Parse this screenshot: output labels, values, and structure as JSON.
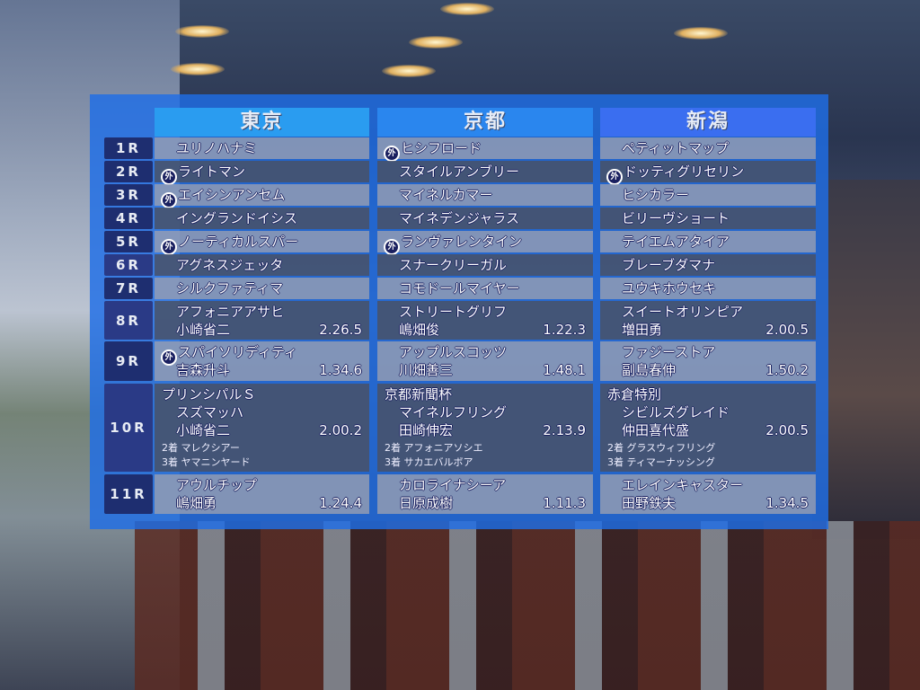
{
  "venues": [
    "東京",
    "京都",
    "新潟"
  ],
  "mark_icon": "circled-gai-foreign-horse-icon",
  "mark_glyph": "外",
  "races": [
    {
      "label": "1R",
      "cells": [
        {
          "mark": false,
          "horse": "ユリノハナミ"
        },
        {
          "mark": true,
          "horse": "ヒシフロード"
        },
        {
          "mark": false,
          "horse": "ペティットマップ"
        }
      ]
    },
    {
      "label": "2R",
      "cells": [
        {
          "mark": true,
          "horse": "ライトマン"
        },
        {
          "mark": false,
          "horse": "スタイルアンブリー"
        },
        {
          "mark": true,
          "horse": "ドッティグリセリン"
        }
      ]
    },
    {
      "label": "3R",
      "cells": [
        {
          "mark": true,
          "horse": "エイシンアンセム"
        },
        {
          "mark": false,
          "horse": "マイネルカマー"
        },
        {
          "mark": false,
          "horse": "ヒシカラー"
        }
      ]
    },
    {
      "label": "4R",
      "cells": [
        {
          "mark": false,
          "horse": "イングランドイシス"
        },
        {
          "mark": false,
          "horse": "マイネデンジャラス"
        },
        {
          "mark": false,
          "horse": "ビリーヴショート"
        }
      ]
    },
    {
      "label": "5R",
      "cells": [
        {
          "mark": true,
          "horse": "ノーティカルスパー"
        },
        {
          "mark": true,
          "horse": "ランヴァレンタイン"
        },
        {
          "mark": false,
          "horse": "テイエムアタイア"
        }
      ]
    },
    {
      "label": "6R",
      "cells": [
        {
          "mark": false,
          "horse": "アグネスジェッタ"
        },
        {
          "mark": false,
          "horse": "スナークリーガル"
        },
        {
          "mark": false,
          "horse": "ブレーブダマナ"
        }
      ]
    },
    {
      "label": "7R",
      "cells": [
        {
          "mark": false,
          "horse": "シルクファティマ"
        },
        {
          "mark": false,
          "horse": "コモドールマイヤー"
        },
        {
          "mark": false,
          "horse": "ユウキホウセキ"
        }
      ]
    },
    {
      "label": "8R",
      "cells": [
        {
          "mark": false,
          "horse": "アフォニアアサヒ",
          "jockey": "小崎省二",
          "time": "2.26.5"
        },
        {
          "mark": false,
          "horse": "ストリートグリフ",
          "jockey": "嶋畑俊",
          "time": "1.22.3"
        },
        {
          "mark": false,
          "horse": "スイートオリンピア",
          "jockey": "増田勇",
          "time": "2.00.5"
        }
      ]
    },
    {
      "label": "9R",
      "cells": [
        {
          "mark": true,
          "horse": "スパイソリディティ",
          "jockey": "吉森升斗",
          "time": "1.34.6"
        },
        {
          "mark": false,
          "horse": "アップルスコッツ",
          "jockey": "川畑善三",
          "time": "1.48.1"
        },
        {
          "mark": false,
          "horse": "ファジーストア",
          "jockey": "副島春伸",
          "time": "1.50.2"
        }
      ]
    },
    {
      "label": "10R",
      "cells": [
        {
          "mark": false,
          "race_name": "プリンシパルＳ",
          "horse": "スズマッハ",
          "jockey": "小崎省二",
          "time": "2.00.2",
          "second": "2着 マレクシアー",
          "third": "3着 ヤマニンヤード"
        },
        {
          "mark": false,
          "race_name": "京都新聞杯",
          "horse": "マイネルフリング",
          "jockey": "田崎伸宏",
          "time": "2.13.9",
          "second": "2着 アフォニアソシエ",
          "third": "3着 サカエバルボア"
        },
        {
          "mark": false,
          "race_name": "赤倉特別",
          "horse": "シビルズグレイド",
          "jockey": "仲田喜代盛",
          "time": "2.00.5",
          "second": "2着 グラスウィフリング",
          "third": "3着 ティマーナッシング"
        }
      ]
    },
    {
      "label": "11R",
      "cells": [
        {
          "mark": false,
          "horse": "アウルチップ",
          "jockey": "嶋畑勇",
          "time": "1.24.4"
        },
        {
          "mark": false,
          "horse": "カロライナシーア",
          "jockey": "日原成樹",
          "time": "1.11.3"
        },
        {
          "mark": false,
          "horse": "エレインキャスター",
          "jockey": "田野鉄夫",
          "time": "1.34.5"
        }
      ]
    }
  ]
}
